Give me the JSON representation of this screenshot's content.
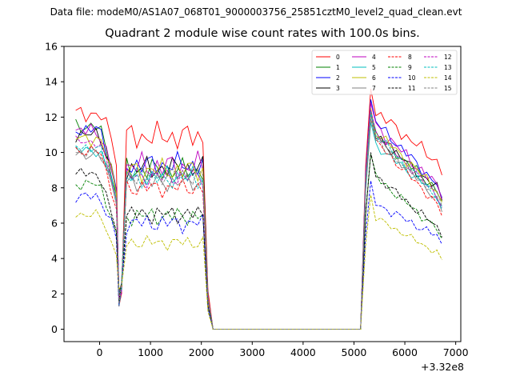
{
  "figure": {
    "suptitle": "Data file: modeM0/AS1A07_068T01_9000003756_25851cztM0_level2_quad_clean.evt",
    "offset_text": "+3.32e8"
  },
  "chart_data": {
    "type": "line",
    "title": "Quadrant 2 module wise count rates with 100.0s bins.",
    "xlabel": "",
    "ylabel": "",
    "x": [
      -470,
      -370,
      -270,
      -170,
      -70,
      30,
      130,
      230,
      330,
      380,
      430,
      530,
      630,
      730,
      830,
      930,
      1030,
      1130,
      1230,
      1330,
      1430,
      1530,
      1630,
      1730,
      1830,
      1930,
      2030,
      2130,
      2230,
      2330,
      2430,
      2530,
      2630,
      2730,
      2830,
      2930,
      3030,
      3130,
      3230,
      3330,
      3430,
      3530,
      3630,
      3730,
      3830,
      3930,
      4030,
      4130,
      4230,
      4330,
      4430,
      4530,
      4630,
      4730,
      4830,
      4930,
      5030,
      5130,
      5230,
      5330,
      5430,
      5530,
      5630,
      5730,
      5830,
      5930,
      6030,
      6130,
      6230,
      6330,
      6430,
      6530,
      6630,
      6730
    ],
    "xlim": [
      -700,
      7100
    ],
    "ylim": [
      -0.7,
      16
    ],
    "xticks": [
      0,
      1000,
      2000,
      3000,
      4000,
      5000,
      6000,
      7000
    ],
    "xtick_labels": [
      "0",
      "1000",
      "2000",
      "3000",
      "4000",
      "5000",
      "6000",
      "7000"
    ],
    "yticks": [
      0,
      2,
      4,
      6,
      8,
      10,
      12,
      14,
      16
    ],
    "ytick_labels": [
      "0",
      "2",
      "4",
      "6",
      "8",
      "10",
      "12",
      "14",
      "16"
    ],
    "legend_loc": "upper right",
    "legend_ncol": 4,
    "grid": false,
    "series": [
      {
        "name": "0",
        "color": "#ff0000",
        "dash": "solid",
        "level": 10.9,
        "pre": 12.2,
        "post": 12.3,
        "zigzag": 0.6
      },
      {
        "name": "1",
        "color": "#008000",
        "dash": "solid",
        "level": 9.0,
        "pre": 11.5,
        "post": 11.0,
        "zigzag": 0.5
      },
      {
        "name": "2",
        "color": "#0000ff",
        "dash": "solid",
        "level": 9.3,
        "pre": 11.3,
        "post": 11.7,
        "zigzag": 0.5
      },
      {
        "name": "3",
        "color": "#000000",
        "dash": "solid",
        "level": 9.1,
        "pre": 11.0,
        "post": 10.9,
        "zigzag": 0.5
      },
      {
        "name": "4",
        "color": "#bf00bf",
        "dash": "solid",
        "level": 9.2,
        "pre": 11.2,
        "post": 11.5,
        "zigzag": 0.6
      },
      {
        "name": "5",
        "color": "#00bfbf",
        "dash": "solid",
        "level": 8.7,
        "pre": 10.1,
        "post": 10.4,
        "zigzag": 0.4
      },
      {
        "name": "6",
        "color": "#bfbf00",
        "dash": "solid",
        "level": 9.0,
        "pre": 10.8,
        "post": 11.2,
        "zigzag": 0.5
      },
      {
        "name": "7",
        "color": "#808080",
        "dash": "solid",
        "level": 8.3,
        "pre": 9.9,
        "post": 10.9,
        "zigzag": 0.4
      },
      {
        "name": "8",
        "color": "#ff0000",
        "dash": "dashed",
        "level": 8.0,
        "pre": 10.1,
        "post": 10.6,
        "zigzag": 0.4
      },
      {
        "name": "9",
        "color": "#008000",
        "dash": "dashed",
        "level": 6.4,
        "pre": 8.2,
        "post": 8.6,
        "zigzag": 0.4
      },
      {
        "name": "10",
        "color": "#0000ff",
        "dash": "dashed",
        "level": 6.0,
        "pre": 7.5,
        "post": 7.1,
        "zigzag": 0.4
      },
      {
        "name": "11",
        "color": "#000000",
        "dash": "dashed",
        "level": 6.5,
        "pre": 8.8,
        "post": 8.7,
        "zigzag": 0.4
      },
      {
        "name": "12",
        "color": "#bf00bf",
        "dash": "dashed",
        "level": 8.6,
        "pre": 10.6,
        "post": 11.1,
        "zigzag": 0.4
      },
      {
        "name": "13",
        "color": "#00bfbf",
        "dash": "dashed",
        "level": 8.5,
        "pre": 10.3,
        "post": 11.0,
        "zigzag": 0.4
      },
      {
        "name": "14",
        "color": "#bfbf00",
        "dash": "dashed",
        "level": 4.9,
        "pre": 6.5,
        "post": 6.3,
        "zigzag": 0.3
      },
      {
        "name": "15",
        "color": "#808080",
        "dash": "dashed",
        "level": 8.7,
        "pre": 10.0,
        "post": 10.6,
        "zigzag": 0.4
      }
    ]
  }
}
